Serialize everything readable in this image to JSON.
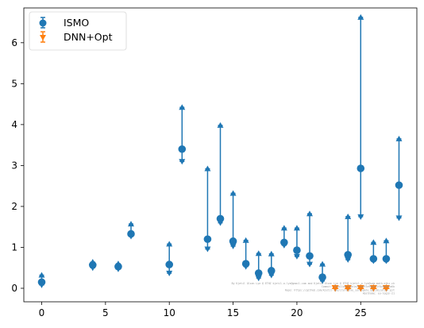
{
  "chart_data": {
    "type": "scatter",
    "title": "",
    "xlabel": "",
    "ylabel": "",
    "xlim": [
      -1.4,
      29.4
    ],
    "ylim": [
      -0.33,
      6.85
    ],
    "xticks": [
      0,
      5,
      10,
      15,
      20,
      25
    ],
    "yticks": [
      0,
      1,
      2,
      3,
      4,
      5,
      6
    ],
    "grid": false,
    "legend_position": "top-left",
    "series": [
      {
        "name": "ISMO",
        "color": "#1f77b4",
        "marker": "circle",
        "points": [
          {
            "x": 0,
            "y": 0.15,
            "low": 0.08,
            "high": 0.32
          },
          {
            "x": 4,
            "y": 0.57,
            "low": 0.5,
            "high": 0.64
          },
          {
            "x": 6,
            "y": 0.53,
            "low": 0.47,
            "high": 0.6
          },
          {
            "x": 7,
            "y": 1.33,
            "low": 1.27,
            "high": 1.57
          },
          {
            "x": 10,
            "y": 0.58,
            "low": 0.37,
            "high": 1.08
          },
          {
            "x": 11,
            "y": 3.4,
            "low": 3.1,
            "high": 4.42
          },
          {
            "x": 13,
            "y": 1.2,
            "low": 0.96,
            "high": 2.92
          },
          {
            "x": 14,
            "y": 1.7,
            "low": 1.6,
            "high": 3.98
          },
          {
            "x": 15,
            "y": 1.15,
            "low": 1.03,
            "high": 2.32
          },
          {
            "x": 16,
            "y": 0.6,
            "low": 0.53,
            "high": 1.17
          },
          {
            "x": 17,
            "y": 0.37,
            "low": 0.25,
            "high": 0.85
          },
          {
            "x": 18,
            "y": 0.43,
            "low": 0.32,
            "high": 0.84
          },
          {
            "x": 19,
            "y": 1.12,
            "low": 1.05,
            "high": 1.47
          },
          {
            "x": 20,
            "y": 0.93,
            "low": 0.78,
            "high": 1.47
          },
          {
            "x": 21,
            "y": 0.79,
            "low": 0.59,
            "high": 1.82
          },
          {
            "x": 22,
            "y": 0.27,
            "low": 0.18,
            "high": 0.59
          },
          {
            "x": 24,
            "y": 0.82,
            "low": 0.7,
            "high": 1.75
          },
          {
            "x": 25,
            "y": 2.93,
            "low": 1.75,
            "high": 6.62
          },
          {
            "x": 26,
            "y": 0.72,
            "low": 0.67,
            "high": 1.12
          },
          {
            "x": 27,
            "y": 0.72,
            "low": 0.67,
            "high": 1.16
          },
          {
            "x": 28,
            "y": 2.52,
            "low": 1.72,
            "high": 3.65
          }
        ]
      },
      {
        "name": "DNN+Opt",
        "color": "#ff7f0e",
        "marker": "triangle-down",
        "points": [
          {
            "x": 23,
            "y": 0.0,
            "low": 0.0,
            "high": 0.0
          },
          {
            "x": 24,
            "y": 0.0,
            "low": 0.0,
            "high": 0.0
          },
          {
            "x": 25,
            "y": 0.0,
            "low": 0.0,
            "high": 0.0
          },
          {
            "x": 26,
            "y": 0.0,
            "low": 0.0,
            "high": 0.0
          },
          {
            "x": 27,
            "y": 0.0,
            "low": 0.0,
            "high": 0.0
          }
        ]
      }
    ],
    "watermark_lines": [
      "By Kjetil Olsen Lye @ ETHZ kjetil.o.lye@gmail.com and Kjetil Olsen Lye @ ETHZ kjetil.o.lye@sam.math.ethz.ch",
      "Commit: 1d1a11da71d4e1e2f1a0f3e9b0e21f8c8d8e6a6b",
      "Repo: https://github.com/kjetil-lye/iterative_surrogate_optimization.git",
      "Hostname: eu-login-21"
    ]
  }
}
